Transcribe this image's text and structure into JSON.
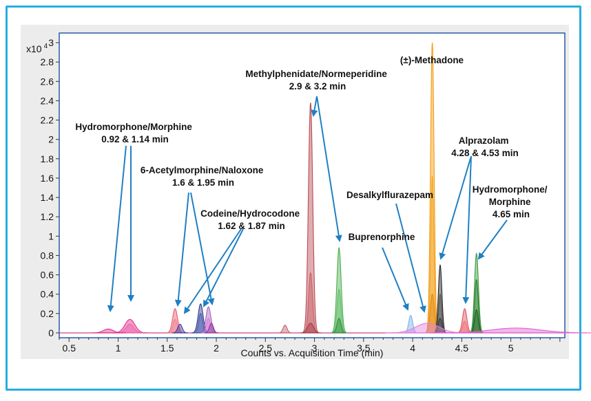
{
  "chart_data": {
    "type": "area",
    "title": "",
    "xlabel": "Counts vs. Acquisition Time (min)",
    "ylabel": "",
    "y_multiplier_label": "x10",
    "y_multiplier_exponent": "4",
    "xlim": [
      0.4,
      5.55
    ],
    "ylim": [
      -0.05,
      3.1
    ],
    "x_ticks": [
      0.5,
      1,
      1.5,
      2,
      2.5,
      3,
      3.5,
      4,
      4.5,
      5
    ],
    "x_tick_labels": [
      "0.5",
      "1",
      "1.5",
      "2",
      "2.5",
      "3",
      "3.5",
      "4",
      "4.5",
      "5"
    ],
    "y_ticks": [
      0,
      0.2,
      0.4,
      0.6,
      0.8,
      1,
      1.2,
      1.4,
      1.6,
      1.8,
      2,
      2.2,
      2.4,
      2.6,
      2.8,
      3
    ],
    "y_tick_labels": [
      "0",
      "0.2",
      "0.4",
      "0.6",
      "0.8",
      "1",
      "1.2",
      "1.4",
      "1.6",
      "1.8",
      "2",
      "2.2",
      "2.4",
      "2.6",
      "2.8",
      "3"
    ],
    "grid": false,
    "peaks": [
      {
        "rt": 0.9,
        "height": 0.04,
        "width": 0.05,
        "color": "#e0308c"
      },
      {
        "rt": 1.12,
        "height": 0.14,
        "width": 0.05,
        "color": "#e0308c"
      },
      {
        "rt": 1.12,
        "height": 0.09,
        "width": 0.04,
        "color": "#f060b0"
      },
      {
        "rt": 1.58,
        "height": 0.25,
        "width": 0.025,
        "color": "#e85a6a"
      },
      {
        "rt": 1.58,
        "height": 0.14,
        "width": 0.02,
        "color": "#f08090"
      },
      {
        "rt": 1.63,
        "height": 0.09,
        "width": 0.022,
        "color": "#3a3aa0"
      },
      {
        "rt": 1.84,
        "height": 0.3,
        "width": 0.025,
        "color": "#2a3a8a"
      },
      {
        "rt": 1.84,
        "height": 0.2,
        "width": 0.02,
        "color": "#4a5ab0"
      },
      {
        "rt": 1.92,
        "height": 0.27,
        "width": 0.025,
        "color": "#b060c0"
      },
      {
        "rt": 1.92,
        "height": 0.15,
        "width": 0.02,
        "color": "#d080d8"
      },
      {
        "rt": 1.95,
        "height": 0.1,
        "width": 0.02,
        "color": "#8a3a9a"
      },
      {
        "rt": 2.7,
        "height": 0.08,
        "width": 0.02,
        "color": "#c06070"
      },
      {
        "rt": 2.96,
        "height": 2.38,
        "width": 0.022,
        "color": "#b84a52"
      },
      {
        "rt": 2.96,
        "height": 0.62,
        "width": 0.02,
        "color": "#c86068"
      },
      {
        "rt": 2.96,
        "height": 0.1,
        "width": 0.03,
        "color": "#a03a44"
      },
      {
        "rt": 3.25,
        "height": 0.88,
        "width": 0.022,
        "color": "#4caf50"
      },
      {
        "rt": 3.25,
        "height": 0.45,
        "width": 0.02,
        "color": "#66c06a"
      },
      {
        "rt": 3.25,
        "height": 0.15,
        "width": 0.02,
        "color": "#2e8b3a"
      },
      {
        "rt": 3.98,
        "height": 0.18,
        "width": 0.02,
        "color": "#7ab0e8"
      },
      {
        "rt": 4.2,
        "height": 3.0,
        "width": 0.018,
        "color": "#f39c12"
      },
      {
        "rt": 4.2,
        "height": 1.62,
        "width": 0.016,
        "color": "#f5a623"
      },
      {
        "rt": 4.2,
        "height": 0.4,
        "width": 0.02,
        "color": "#e08a10"
      },
      {
        "rt": 4.15,
        "height": 0.1,
        "width": 0.12,
        "color": "#e080e0"
      },
      {
        "rt": 4.28,
        "height": 0.7,
        "width": 0.018,
        "color": "#222222"
      },
      {
        "rt": 4.28,
        "height": 0.4,
        "width": 0.016,
        "color": "#555555"
      },
      {
        "rt": 4.28,
        "height": 0.15,
        "width": 0.02,
        "color": "#3a3a3a"
      },
      {
        "rt": 4.53,
        "height": 0.25,
        "width": 0.022,
        "color": "#e0505a"
      },
      {
        "rt": 4.53,
        "height": 0.12,
        "width": 0.02,
        "color": "#f07078"
      },
      {
        "rt": 4.65,
        "height": 0.82,
        "width": 0.02,
        "color": "#3a9a3a"
      },
      {
        "rt": 4.65,
        "height": 0.55,
        "width": 0.018,
        "color": "#2e7d32"
      },
      {
        "rt": 4.65,
        "height": 0.24,
        "width": 0.018,
        "color": "#1b5e20"
      },
      {
        "rt": 5.05,
        "height": 0.05,
        "width": 0.25,
        "color": "#e060d0"
      }
    ],
    "annotations": [
      {
        "lines": [
          "Hydromorphone/Morphine",
          "0.92 & 1.14 min"
        ]
      },
      {
        "lines": [
          "6-Acetylmorphine/Naloxone",
          "1.6 & 1.95 min"
        ]
      },
      {
        "lines": [
          "Codeine/Hydrocodone",
          "1.62 & 1.87 min"
        ]
      },
      {
        "lines": [
          "Methylphenidate/Normeperidine",
          "2.9 & 3.2 min"
        ]
      },
      {
        "lines": [
          "(±)-Methadone"
        ]
      },
      {
        "lines": [
          "Desalkylflurazepam"
        ]
      },
      {
        "lines": [
          "Buprenorphine"
        ]
      },
      {
        "lines": [
          "Alprazolam",
          "4.28 & 4.53 min"
        ]
      },
      {
        "lines": [
          "Hydromorphone/",
          "Morphine",
          "4.65 min"
        ]
      }
    ]
  }
}
